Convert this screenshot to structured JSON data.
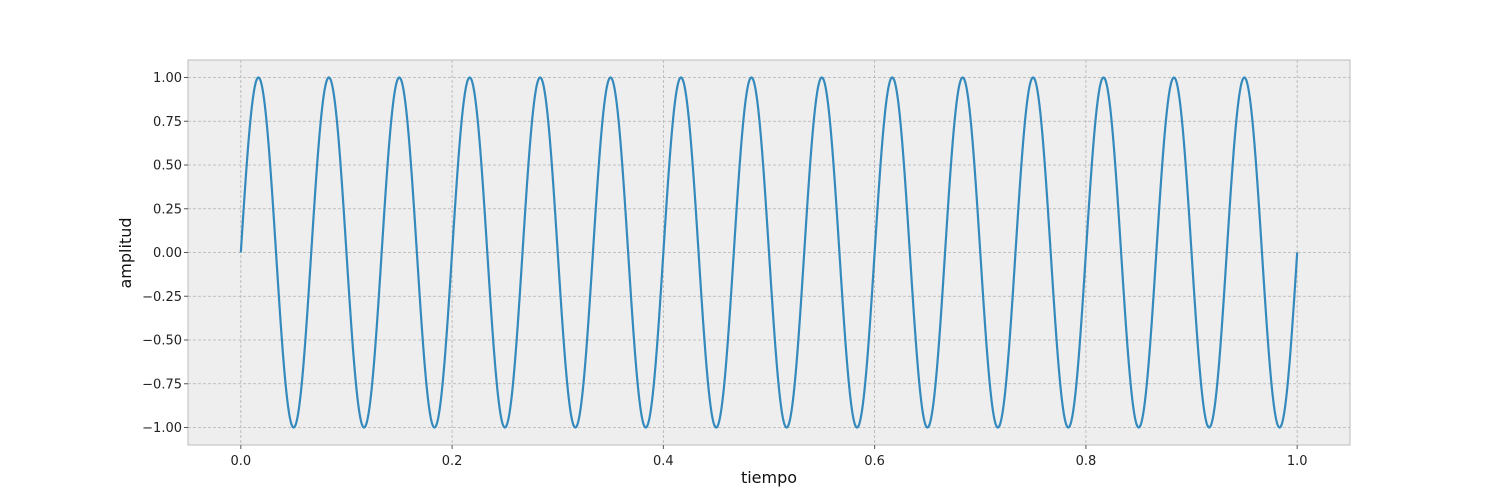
{
  "chart_data": {
    "type": "line",
    "title": "",
    "xlabel": "tiempo",
    "ylabel": "amplitud",
    "xlim": [
      -0.05,
      1.05
    ],
    "ylim": [
      -1.1,
      1.1
    ],
    "x_ticks": [
      0.0,
      0.2,
      0.4,
      0.6,
      0.8,
      1.0
    ],
    "x_tick_labels": [
      "0.0",
      "0.2",
      "0.4",
      "0.6",
      "0.8",
      "1.0"
    ],
    "y_ticks": [
      1.0,
      0.75,
      0.5,
      0.25,
      0.0,
      -0.25,
      -0.5,
      -0.75,
      -1.0
    ],
    "y_tick_labels": [
      "1.00",
      "0.75",
      "0.50",
      "0.25",
      "0.00",
      "−0.25",
      "−0.50",
      "−0.75",
      "−1.00"
    ],
    "grid": true,
    "series": [
      {
        "function": "sin(2*pi*f*t)",
        "frequency": 15,
        "amplitude": 1.0,
        "t_range": [
          0.0,
          1.0
        ],
        "color": "#348abd"
      }
    ]
  },
  "colors": {
    "plot_background": "#eeeeee",
    "frame": "#bcbcbc",
    "grid": "#b2b2b2"
  }
}
